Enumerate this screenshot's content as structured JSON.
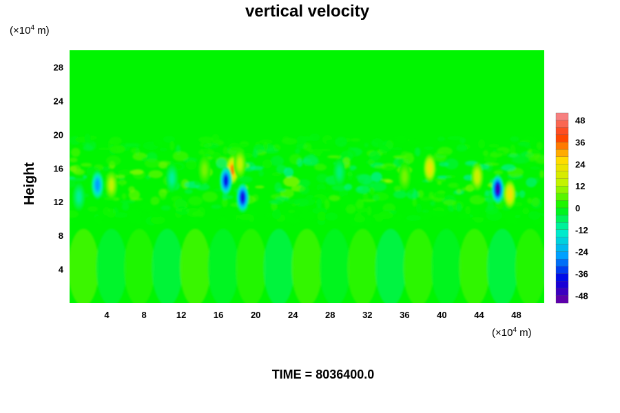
{
  "chart_data": {
    "type": "heatmap",
    "title": "vertical velocity",
    "ylabel": "Height",
    "y_unit": {
      "prefix": "(×10",
      "exp": "4",
      "suffix": " m)"
    },
    "x_unit": {
      "prefix": "(×10",
      "exp": "4",
      "suffix": " m)"
    },
    "xlim": [
      0,
      51
    ],
    "ylim": [
      0,
      30
    ],
    "x_ticks": [
      "4",
      "8",
      "12",
      "16",
      "20",
      "24",
      "28",
      "32",
      "36",
      "40",
      "44",
      "48"
    ],
    "x_tick_values": [
      4,
      8,
      12,
      16,
      20,
      24,
      28,
      32,
      36,
      40,
      44,
      48
    ],
    "y_ticks": [
      "4",
      "8",
      "12",
      "16",
      "20",
      "24",
      "28"
    ],
    "y_tick_values": [
      4,
      8,
      12,
      16,
      20,
      24,
      28
    ],
    "colorbar": {
      "range": [
        -52,
        52
      ],
      "levels": 26,
      "ticks": [
        "48",
        "36",
        "24",
        "12",
        "0",
        "-12",
        "-24",
        "-36",
        "-48"
      ],
      "tick_values": [
        48,
        36,
        24,
        12,
        0,
        -12,
        -24,
        -36,
        -48
      ]
    },
    "features": [
      {
        "x": 17.5,
        "y": 15.8,
        "value": 34
      },
      {
        "x": 16.8,
        "y": 14.5,
        "value": -38
      },
      {
        "x": 18.6,
        "y": 12.5,
        "value": -40
      },
      {
        "x": 18.3,
        "y": 16.5,
        "value": 14
      },
      {
        "x": 46.0,
        "y": 13.5,
        "value": -46
      },
      {
        "x": 47.3,
        "y": 12.9,
        "value": 24
      },
      {
        "x": 43.8,
        "y": 15.0,
        "value": 16
      },
      {
        "x": 38.7,
        "y": 16.0,
        "value": 22
      },
      {
        "x": 4.5,
        "y": 14.0,
        "value": 14
      },
      {
        "x": 3.0,
        "y": 14.0,
        "value": -26
      },
      {
        "x": 1.0,
        "y": 12.6,
        "value": -10
      },
      {
        "x": 11.0,
        "y": 14.8,
        "value": -10
      },
      {
        "x": 14.5,
        "y": 15.8,
        "value": 8
      },
      {
        "x": 29.0,
        "y": 15.5,
        "value": -8
      },
      {
        "x": 36.0,
        "y": 15.0,
        "value": 8
      }
    ],
    "lower_waves": {
      "period": 6.0,
      "amplitude": 5,
      "y_center": 4.2
    }
  },
  "footer": {
    "time_label": "TIME = 8036400.0"
  }
}
